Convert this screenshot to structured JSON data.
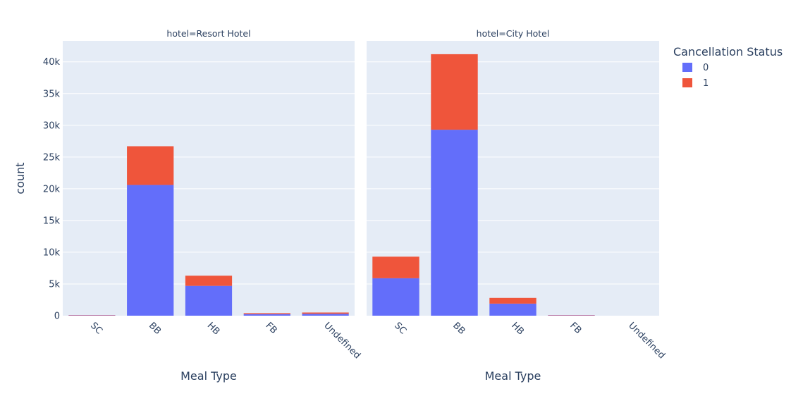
{
  "chart_data": {
    "type": "bar",
    "barmode": "stack",
    "ylabel": "count",
    "ylim": [
      0,
      43300
    ],
    "y_ticks": [
      0,
      5000,
      10000,
      15000,
      20000,
      25000,
      30000,
      35000,
      40000
    ],
    "y_tick_labels": [
      "0",
      "5k",
      "10k",
      "15k",
      "20k",
      "25k",
      "30k",
      "35k",
      "40k"
    ],
    "grid": true,
    "legend": {
      "title": "Cancellation Status",
      "placement": "top-right",
      "entries": [
        {
          "name": "0",
          "color": "#636efa"
        },
        {
          "name": "1",
          "color": "#ef553b"
        }
      ]
    },
    "categories": [
      "SC",
      "BB",
      "HB",
      "FB",
      "Undefined"
    ],
    "facets": [
      {
        "title": "hotel=Resort Hotel",
        "xlabel": "Meal Type",
        "series": [
          {
            "name": "0",
            "values": [
              50,
              20600,
              4700,
              250,
              300
            ]
          },
          {
            "name": "1",
            "values": [
              50,
              6100,
              1600,
              150,
              200
            ]
          }
        ]
      },
      {
        "title": "hotel=City Hotel",
        "xlabel": "Meal Type",
        "series": [
          {
            "name": "0",
            "values": [
              5900,
              29300,
              1900,
              50,
              0
            ]
          },
          {
            "name": "1",
            "values": [
              3400,
              11900,
              900,
              50,
              0
            ]
          }
        ]
      }
    ]
  }
}
